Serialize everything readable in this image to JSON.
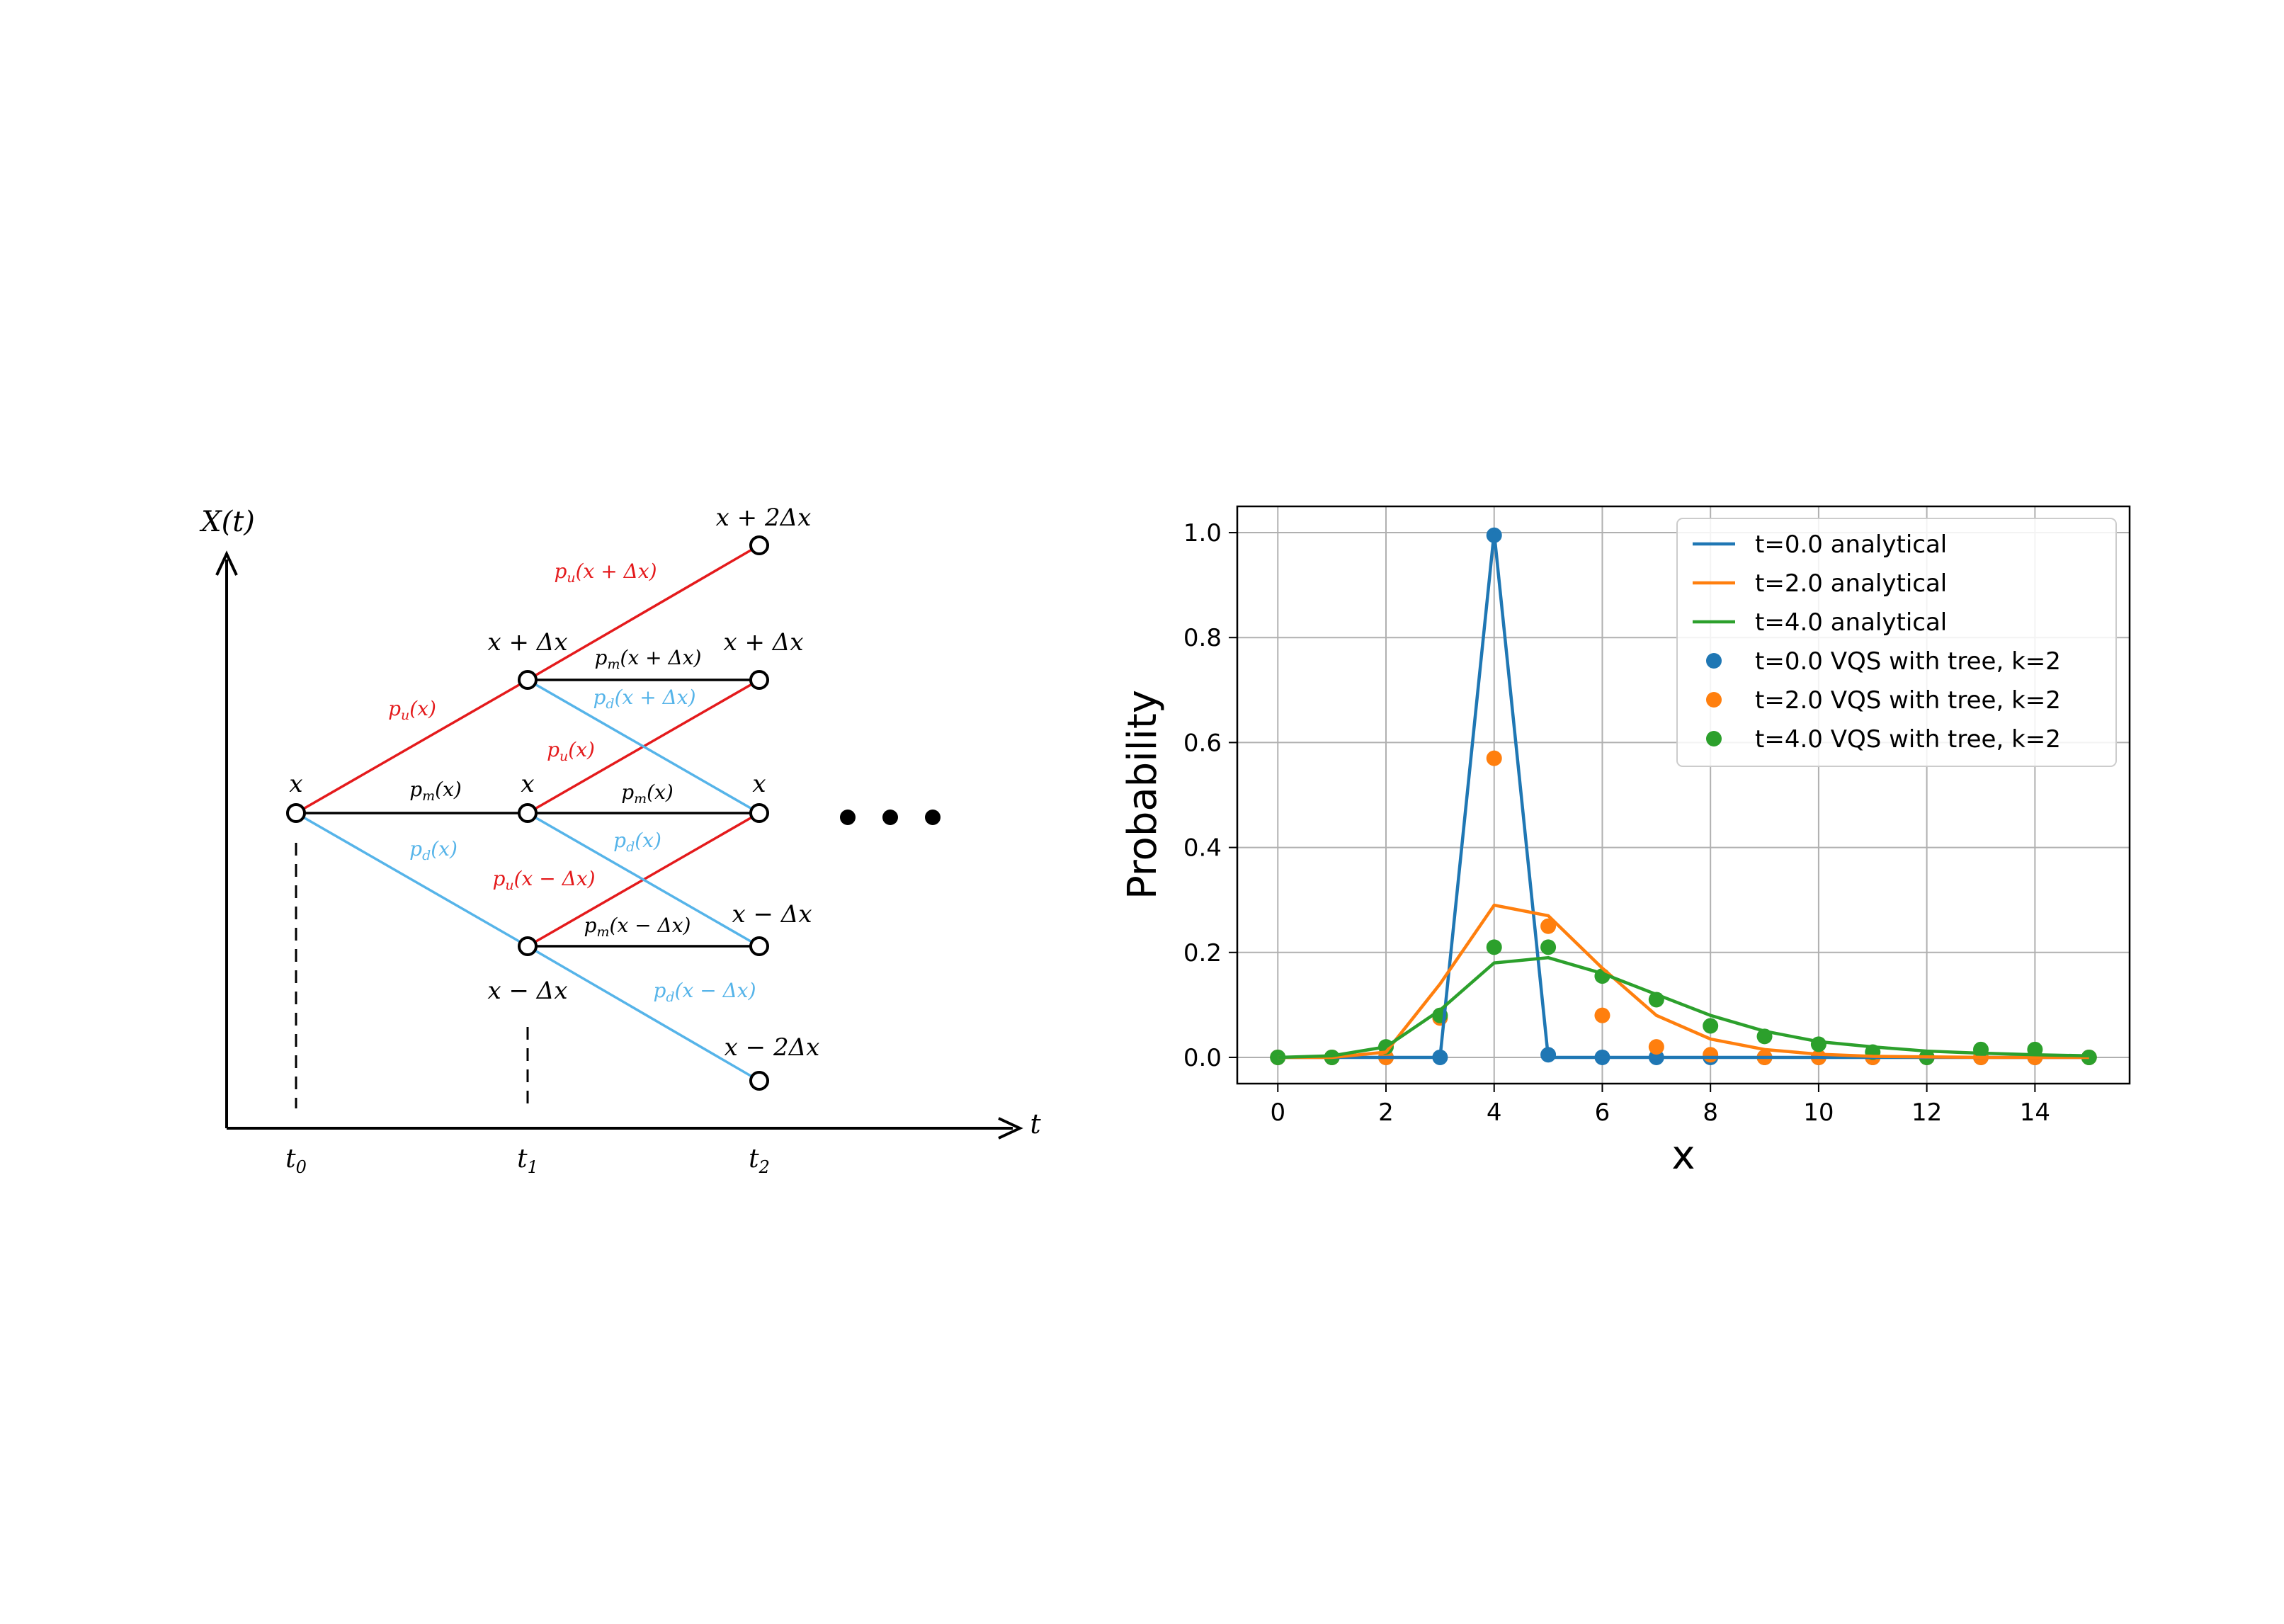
{
  "colors": {
    "up": "#e41a1c",
    "down": "#56b4e9",
    "mid": "#000000",
    "series0": "#1f77b4",
    "series1": "#ff7f0e",
    "series2": "#2ca02c",
    "grid": "#b0b0b0"
  },
  "tree": {
    "y_axis_label": "X(t)",
    "x_axis_label": "t",
    "time_labels": [
      "t0",
      "t1",
      "t2"
    ],
    "ellipsis": "• • •",
    "node_labels": {
      "x_plus_2dx": "x + 2Δx",
      "x_plus_dx_t1": "x + Δx",
      "x_plus_dx_t2": "x + Δx",
      "x_t0": "x",
      "x_t1": "x",
      "x_t2": "x",
      "x_minus_dx_t1": "x − Δx",
      "x_minus_dx_t2": "x − Δx",
      "x_minus_2dx": "x − 2Δx"
    },
    "edge_labels": {
      "pu_x": "pu(x)",
      "pm_x_t0": "pm(x)",
      "pd_x_t0": "pd(x)",
      "pu_x_plus_dx": "pu(x + Δx)",
      "pm_x_plus_dx": "pm(x + Δx)",
      "pd_x_plus_dx": "pd(x + Δx)",
      "pu_x_t1": "pu(x)",
      "pm_x_t1": "pm(x)",
      "pd_x_t1": "pd(x)",
      "pu_x_minus_dx": "pu(x − Δx)",
      "pm_x_minus_dx": "pm(x − Δx)",
      "pd_x_minus_dx": "pd(x − Δx)"
    }
  },
  "chart_data": {
    "type": "line",
    "xlabel": "x",
    "ylabel": "Probability",
    "xlim": [
      -0.75,
      15.75
    ],
    "ylim": [
      -0.05,
      1.05
    ],
    "xticks": [
      0,
      2,
      4,
      6,
      8,
      10,
      12,
      14
    ],
    "yticks": [
      0.0,
      0.2,
      0.4,
      0.6,
      0.8,
      1.0
    ],
    "xtick_labels": [
      "0",
      "2",
      "4",
      "6",
      "8",
      "10",
      "12",
      "14"
    ],
    "ytick_labels": [
      "0.0",
      "0.2",
      "0.4",
      "0.6",
      "0.8",
      "1.0"
    ],
    "grid": true,
    "legend_position": "top-right",
    "x": [
      0,
      1,
      2,
      3,
      4,
      5,
      6,
      7,
      8,
      9,
      10,
      11,
      12,
      13,
      14,
      15
    ],
    "series": [
      {
        "name": "t=0.0 analytical",
        "kind": "line",
        "color": "#1f77b4",
        "values": [
          0,
          0,
          0,
          0,
          1.0,
          0,
          0,
          0,
          0,
          0,
          0,
          0,
          0,
          0,
          0,
          0
        ]
      },
      {
        "name": "t=2.0 analytical",
        "kind": "line",
        "color": "#ff7f0e",
        "values": [
          0,
          0,
          0.01,
          0.14,
          0.29,
          0.27,
          0.17,
          0.08,
          0.035,
          0.015,
          0.006,
          0.002,
          0.001,
          0.0,
          0.0,
          0.0
        ]
      },
      {
        "name": "t=4.0 analytical",
        "kind": "line",
        "color": "#2ca02c",
        "values": [
          0,
          0.003,
          0.02,
          0.09,
          0.18,
          0.19,
          0.16,
          0.12,
          0.08,
          0.05,
          0.03,
          0.02,
          0.012,
          0.008,
          0.005,
          0.003
        ]
      },
      {
        "name": "t=0.0 VQS with tree, k=2",
        "kind": "scatter",
        "color": "#1f77b4",
        "values": [
          0,
          0,
          0,
          0,
          0.995,
          0.005,
          0,
          0,
          0,
          0,
          0,
          0,
          0,
          0,
          0,
          0
        ]
      },
      {
        "name": "t=2.0 VQS with tree, k=2",
        "kind": "scatter",
        "color": "#ff7f0e",
        "values": [
          0,
          0,
          0.0,
          0.075,
          0.57,
          0.25,
          0.08,
          0.02,
          0.005,
          0.0,
          0.0,
          0.0,
          0.0,
          0.0,
          0.0,
          0.0
        ]
      },
      {
        "name": "t=4.0 VQS with tree, k=2",
        "kind": "scatter",
        "color": "#2ca02c",
        "values": [
          0,
          0,
          0.02,
          0.08,
          0.21,
          0.21,
          0.155,
          0.11,
          0.06,
          0.04,
          0.025,
          0.01,
          0.0,
          0.015,
          0.015,
          0.0
        ]
      }
    ]
  }
}
